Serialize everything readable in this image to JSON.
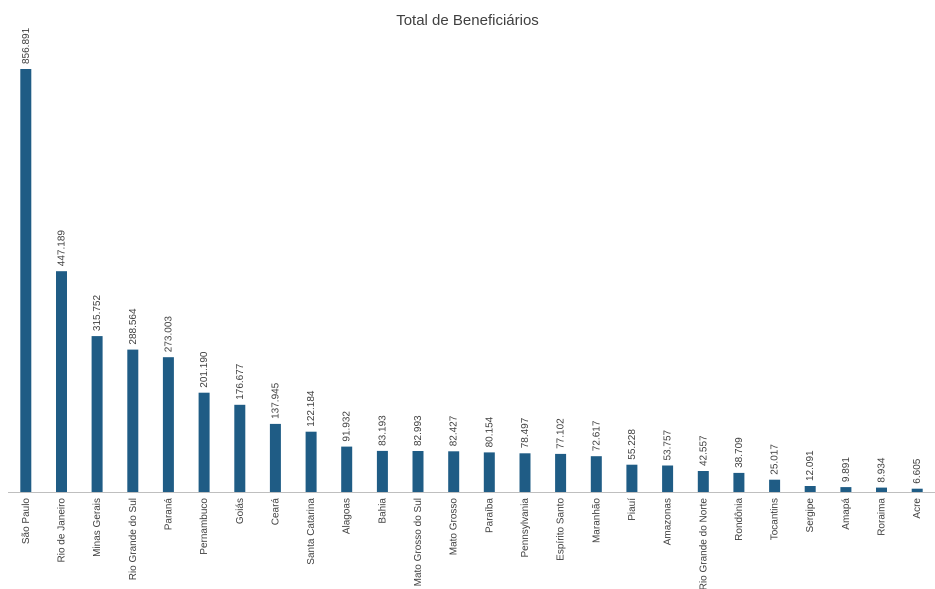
{
  "chart_data": {
    "type": "bar",
    "title": "Total de Beneficiários",
    "xlabel": "",
    "ylabel": "",
    "ylim": [
      0,
      856891
    ],
    "grid": false,
    "legend": "none",
    "colors": {
      "bar": "#1f5c85"
    },
    "categories": [
      "São Paulo",
      "Rio de Janeiro",
      "Minas Gerais",
      "Rio Grande do Sul",
      "Paraná",
      "Pernambuco",
      "Goiás",
      "Ceará",
      "Santa Catarina",
      "Alagoas",
      "Bahia",
      "Mato Grosso do Sul",
      "Mato Grosso",
      "Paraíba",
      "Pennsylvania",
      "Espírito Santo",
      "Maranhão",
      "Piauí",
      "Amazonas",
      "Rio Grande do Norte",
      "Rondônia",
      "Tocantins",
      "Sergipe",
      "Amapá",
      "Roraima",
      "Acre"
    ],
    "values": [
      856891,
      447189,
      315752,
      288564,
      273003,
      201190,
      176677,
      137945,
      122184,
      91932,
      83193,
      82993,
      82427,
      80154,
      78497,
      77102,
      72617,
      55228,
      53757,
      42557,
      38709,
      25017,
      12091,
      9891,
      8934,
      6605
    ],
    "value_labels": [
      "856.891",
      "447.189",
      "315.752",
      "288.564",
      "273.003",
      "201.190",
      "176.677",
      "137.945",
      "122.184",
      "91.932",
      "83.193",
      "82.993",
      "82.427",
      "80.154",
      "78.497",
      "77.102",
      "72.617",
      "55.228",
      "53.757",
      "42.557",
      "38.709",
      "25.017",
      "12.091",
      "9.891",
      "8.934",
      "6.605"
    ]
  }
}
